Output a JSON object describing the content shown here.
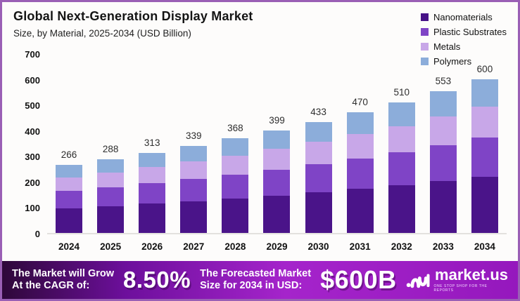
{
  "header": {
    "title": "Global Next-Generation Display Market",
    "subtitle": "Size, by Material, 2025-2034 (USD Billion)"
  },
  "legend": [
    {
      "label": "Nanomaterials",
      "color": "#471287"
    },
    {
      "label": "Plastic Substrates",
      "color": "#7f44c6"
    },
    {
      "label": "Metals",
      "color": "#c8a7e8"
    },
    {
      "label": "Polymers",
      "color": "#8cadda"
    }
  ],
  "chart_data": {
    "type": "bar",
    "stacked": true,
    "title": "Global Next-Generation Display Market",
    "subtitle": "Size, by Material, 2025-2034 (USD Billion)",
    "xlabel": "",
    "ylabel": "USD Billion",
    "categories": [
      "2024",
      "2025",
      "2026",
      "2027",
      "2028",
      "2029",
      "2030",
      "2031",
      "2032",
      "2033",
      "2034"
    ],
    "totals": [
      266,
      288,
      313,
      339,
      368,
      399,
      433,
      470,
      510,
      553,
      600
    ],
    "series": [
      {
        "name": "Nanomaterials",
        "color": "#4a1489",
        "values": [
          97,
          105,
          114,
          124,
          134,
          146,
          158,
          172,
          186,
          202,
          219
        ]
      },
      {
        "name": "Plastic Substrates",
        "color": "#7f44c6",
        "values": [
          67,
          73,
          79,
          86,
          93,
          101,
          110,
          119,
          129,
          140,
          152
        ]
      },
      {
        "name": "Metals",
        "color": "#c8a7e8",
        "values": [
          53,
          58,
          63,
          68,
          74,
          80,
          87,
          94,
          102,
          111,
          120
        ]
      },
      {
        "name": "Polymers",
        "color": "#8cadda",
        "values": [
          49,
          52,
          57,
          61,
          67,
          72,
          78,
          85,
          93,
          100,
          109
        ]
      }
    ],
    "ylim": [
      0,
      700
    ],
    "yticks": [
      0,
      100,
      200,
      300,
      400,
      500,
      600,
      700
    ],
    "grid": false,
    "legend_position": "top-right"
  },
  "footer": {
    "cagr_label_line1": "The Market will Grow",
    "cagr_label_line2": "At the CAGR of:",
    "cagr_value": "8.50%",
    "forecast_label_line1": "The Forecasted Market",
    "forecast_label_line2": "Size for 2034 in USD:",
    "forecast_value": "$600B",
    "brand_name": "market.us",
    "brand_tagline": "ONE STOP SHOP FOR THE REPORTS",
    "gradient": [
      "#2e0839",
      "#6d0f9c",
      "#a524cb",
      "#9518bd"
    ]
  }
}
